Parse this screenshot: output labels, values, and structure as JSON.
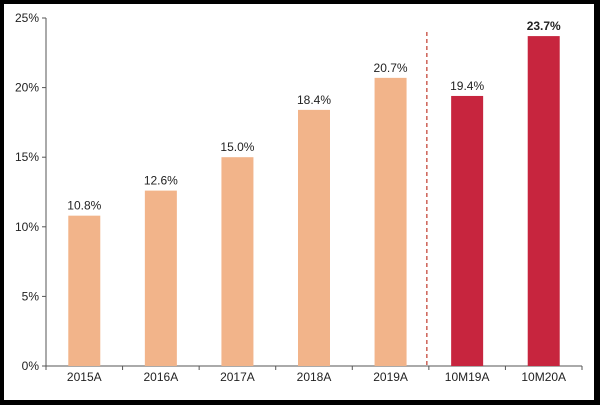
{
  "chart_data": {
    "type": "bar",
    "title": "",
    "xlabel": "",
    "ylabel": "",
    "categories": [
      "2015A",
      "2016A",
      "2017A",
      "2018A",
      "2019A",
      "10M19A",
      "10M20A"
    ],
    "values": [
      10.8,
      12.6,
      15.0,
      18.4,
      20.7,
      19.4,
      23.7
    ],
    "value_labels": [
      "10.8%",
      "12.6%",
      "15.0%",
      "18.4%",
      "20.7%",
      "19.4%",
      "23.7%"
    ],
    "ylim": [
      0,
      25
    ],
    "yticks": [
      0,
      5,
      10,
      15,
      20,
      25
    ],
    "ytick_labels": [
      "0%",
      "5%",
      "10%",
      "15%",
      "20%",
      "25%"
    ],
    "grid": false,
    "legend": "none",
    "divider": "dashed line between 2019A and 10M19A",
    "colors": {
      "annual": "#F2B48A",
      "ytd": "#C7253E",
      "divider": "#C0392B",
      "axis": "#555555",
      "frame": "#000000"
    },
    "bar_colors": [
      "annual",
      "annual",
      "annual",
      "annual",
      "annual",
      "ytd",
      "ytd"
    ],
    "bold_labels": [
      false,
      false,
      false,
      false,
      false,
      false,
      true
    ]
  }
}
